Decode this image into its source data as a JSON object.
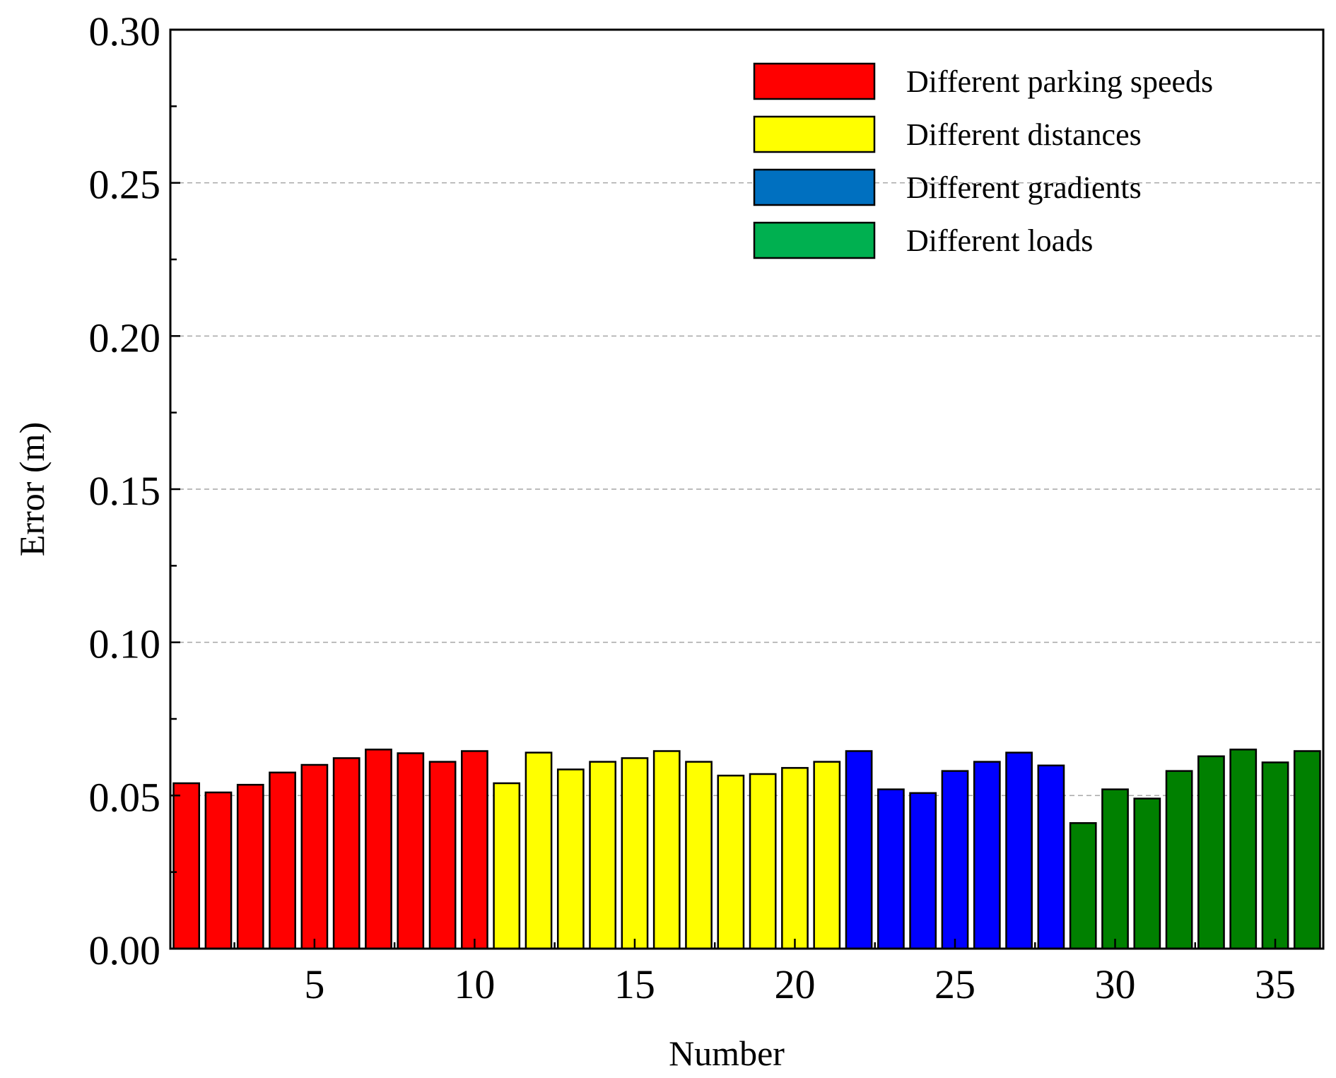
{
  "chart_data": {
    "type": "bar",
    "title": "",
    "xlabel": "Number",
    "ylabel": "Error (m)",
    "ylim": [
      0,
      0.3
    ],
    "xlim": [
      0.5,
      36.5
    ],
    "yticks": [
      "0.00",
      "0.05",
      "0.10",
      "0.15",
      "0.20",
      "0.25",
      "0.30"
    ],
    "ytick_values": [
      0,
      0.05,
      0.1,
      0.15,
      0.2,
      0.25,
      0.3
    ],
    "xticks": [
      "5",
      "10",
      "15",
      "20",
      "25",
      "30",
      "35"
    ],
    "xtick_values": [
      5,
      10,
      15,
      20,
      25,
      30,
      35
    ],
    "grid": "horizontal dashed",
    "legend_position": "top-right",
    "series": [
      {
        "name": "Different parking speeds",
        "color": "#ff0000",
        "x": [
          1,
          2,
          3,
          4,
          5,
          6,
          7,
          8,
          9,
          10
        ],
        "values": [
          0.054,
          0.051,
          0.0535,
          0.0575,
          0.06,
          0.0622,
          0.065,
          0.0638,
          0.061,
          0.0645
        ]
      },
      {
        "name": "Different distances",
        "color": "#ffff00",
        "x": [
          11,
          12,
          13,
          14,
          15,
          16,
          17,
          18,
          19,
          20,
          21
        ],
        "values": [
          0.054,
          0.064,
          0.0585,
          0.061,
          0.0622,
          0.0645,
          0.061,
          0.0565,
          0.057,
          0.059,
          0.061
        ]
      },
      {
        "name": "Different gradients",
        "color": "#0000ff",
        "legend_color": "#0070c0",
        "x": [
          22,
          23,
          24,
          25,
          26,
          27,
          28
        ],
        "values": [
          0.0645,
          0.052,
          0.0508,
          0.058,
          0.061,
          0.064,
          0.0598
        ]
      },
      {
        "name": "Different loads",
        "color": "#008000",
        "legend_color": "#00b050",
        "x": [
          29,
          30,
          31,
          32,
          33,
          34,
          35,
          36
        ],
        "values": [
          0.041,
          0.052,
          0.049,
          0.058,
          0.0628,
          0.065,
          0.0608,
          0.0645
        ]
      }
    ]
  }
}
